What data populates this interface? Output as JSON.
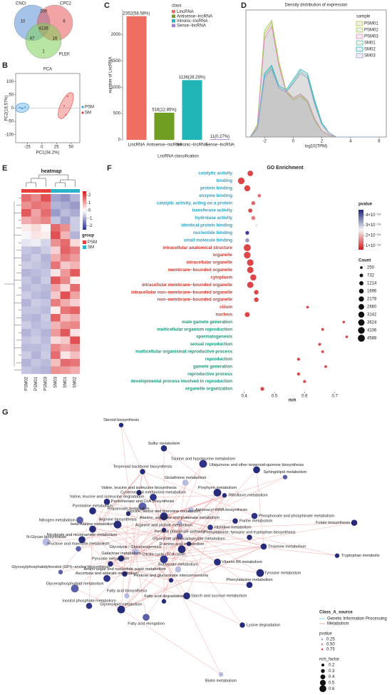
{
  "panels": [
    "B",
    "C",
    "D",
    "E",
    "F",
    "G"
  ],
  "venn": {
    "sets": [
      "CNCI",
      "CPC2",
      "PLEK"
    ],
    "regions": [
      10,
      209,
      6,
      4136,
      47,
      16,
      1
    ]
  },
  "chart_data": [
    {
      "type": "scatter",
      "title": "PCA",
      "xlabel": "PC1(34.2%)",
      "ylabel": "PC2(18.57%)",
      "xlim": [
        -45,
        65
      ],
      "ylim": [
        -130,
        130
      ],
      "xticks": [
        -25,
        0,
        25,
        50
      ],
      "yticks": [
        100,
        50,
        0,
        -50,
        -100
      ],
      "series": [
        {
          "name": "PSM",
          "color": "#3d9be0",
          "x": [
            -38,
            -33,
            -29,
            -35
          ],
          "values": [
            3,
            -1,
            4,
            0
          ]
        },
        {
          "name": "SM",
          "color": "#e8403a",
          "x": [
            44,
            38,
            41
          ],
          "values": [
            45,
            8,
            -25
          ]
        }
      ]
    },
    {
      "type": "bar",
      "ylabel": "number of LncRNA",
      "xlabel": "LncRNA classification",
      "legend_title": "class",
      "categories": [
        "LincRNA",
        "Antisense−lncRNA",
        "Intronic−lncRNA",
        "Sense−lncRNA"
      ],
      "values": [
        2352,
        516,
        1136,
        11
      ],
      "value_labels": [
        "2352(58.58%)",
        "516(12.85%)",
        "1136(28.29%)",
        "11(0.27%)"
      ],
      "colors": [
        "#ee6f61",
        "#6f9e22",
        "#22b5b8",
        "#a87bd6"
      ],
      "ylim": [
        0,
        2470
      ],
      "yticks": [
        0,
        500,
        1000,
        1500,
        2000
      ]
    },
    {
      "type": "line",
      "title": "Density distribution of expression",
      "xlabel": "log10(TPM)",
      "legend_title": "sample",
      "xlim": [
        -3.3,
        6.5
      ],
      "ylim": [
        0,
        0.62
      ],
      "xticks": [
        -2,
        0,
        2,
        4,
        6
      ],
      "x": [
        -3,
        -2.5,
        -2,
        -1.5,
        -1,
        -0.5,
        0,
        0.5,
        1,
        1.5,
        2,
        2.5,
        3,
        4,
        5,
        6
      ],
      "series": [
        {
          "name": "PSM01",
          "color": "#c9c43a",
          "values": [
            0,
            0.06,
            0.5,
            0.56,
            0.36,
            0.22,
            0.18,
            0.2,
            0.17,
            0.08,
            0.03,
            0.01,
            0,
            0,
            0,
            0
          ]
        },
        {
          "name": "PSM02",
          "color": "#9fd356",
          "values": [
            0,
            0.06,
            0.52,
            0.57,
            0.37,
            0.23,
            0.19,
            0.21,
            0.17,
            0.08,
            0.03,
            0.01,
            0,
            0,
            0,
            0
          ]
        },
        {
          "name": "PSM03",
          "color": "#e78ac3",
          "values": [
            0,
            0.05,
            0.48,
            0.54,
            0.35,
            0.22,
            0.19,
            0.21,
            0.18,
            0.09,
            0.03,
            0.01,
            0,
            0,
            0,
            0
          ]
        },
        {
          "name": "SM01",
          "color": "#66c2a5",
          "values": [
            0,
            0.04,
            0.3,
            0.34,
            0.24,
            0.22,
            0.27,
            0.32,
            0.3,
            0.17,
            0.07,
            0.02,
            0,
            0,
            0,
            0
          ]
        },
        {
          "name": "SM02",
          "color": "#1fb5c8",
          "values": [
            0,
            0.04,
            0.31,
            0.35,
            0.25,
            0.23,
            0.28,
            0.33,
            0.31,
            0.18,
            0.07,
            0.02,
            0,
            0,
            0,
            0
          ]
        },
        {
          "name": "SM03",
          "color": "#8da0cb",
          "values": [
            0,
            0.04,
            0.29,
            0.33,
            0.24,
            0.22,
            0.26,
            0.31,
            0.29,
            0.16,
            0.06,
            0.02,
            0,
            0,
            0,
            0
          ]
        }
      ]
    },
    {
      "type": "heatmap",
      "title": "heatmap",
      "columns": [
        "PSM02",
        "PSM01",
        "PSM03",
        "SM03",
        "SM01",
        "SM02"
      ],
      "clim": [
        -2.5,
        2.5
      ],
      "cticks": [
        2,
        1,
        0,
        -1,
        -2
      ],
      "legend_title": "group",
      "groups": [
        {
          "name": "PSM",
          "color": "#e8403a"
        },
        {
          "name": "SM",
          "color": "#2ab3c8"
        }
      ],
      "column_groups": [
        0,
        0,
        0,
        1,
        1,
        1
      ],
      "values": [
        [
          1.6,
          1.3,
          1.9,
          -1.1,
          -1.3,
          -0.9
        ],
        [
          1.2,
          1.5,
          1.4,
          -0.9,
          -1.0,
          -1.2
        ],
        [
          1.8,
          1.0,
          1.6,
          -1.2,
          -0.8,
          -1.0
        ],
        [
          0.9,
          1.1,
          1.3,
          -0.7,
          -1.1,
          -0.6
        ],
        [
          0.2,
          0.4,
          0.1,
          1.6,
          1.2,
          -0.6
        ],
        [
          -0.1,
          0.3,
          0.2,
          1.9,
          0.8,
          -0.9
        ],
        [
          -0.3,
          -0.2,
          -0.5,
          1.2,
          1.6,
          0.4
        ],
        [
          -0.7,
          -0.8,
          -0.6,
          0.5,
          1.7,
          1.4
        ],
        [
          -0.8,
          -0.6,
          -0.9,
          0.9,
          1.4,
          1.1
        ],
        [
          -0.6,
          -0.7,
          -0.8,
          1.5,
          0.6,
          0.8
        ],
        [
          -0.9,
          -0.8,
          -0.7,
          0.3,
          1.1,
          1.8
        ],
        [
          -0.7,
          -0.9,
          -0.6,
          1.8,
          1.3,
          0.2
        ],
        [
          -0.8,
          -0.7,
          -0.8,
          1.0,
          0.4,
          1.6
        ],
        [
          -0.6,
          -0.8,
          -0.9,
          0.6,
          1.9,
          1.0
        ],
        [
          -0.9,
          -0.6,
          -0.7,
          1.4,
          0.9,
          0.5
        ],
        [
          -0.7,
          -0.7,
          -0.8,
          0.2,
          1.5,
          1.7
        ],
        [
          -0.8,
          -0.9,
          -0.6,
          1.7,
          0.7,
          0.9
        ],
        [
          -0.6,
          -0.8,
          -0.7,
          0.8,
          1.2,
          1.3
        ],
        [
          -0.9,
          -0.7,
          -0.9,
          1.1,
          1.8,
          0.3
        ],
        [
          -0.7,
          -0.6,
          -0.8,
          0.4,
          0.6,
          1.9
        ],
        [
          -0.8,
          -0.8,
          -0.7,
          1.3,
          1.0,
          1.2
        ],
        [
          -0.6,
          -0.9,
          -0.6,
          1.6,
          0.3,
          0.7
        ],
        [
          -0.9,
          -0.7,
          -0.8,
          0.7,
          1.6,
          1.5
        ],
        [
          -0.7,
          -0.8,
          -0.9,
          1.2,
          1.1,
          0.9
        ]
      ]
    },
    {
      "type": "dot",
      "title": "GO Enrichment",
      "xlabel": "rich",
      "xlim": [
        0.37,
        0.76
      ],
      "xticks": [
        0.4,
        0.5,
        0.6,
        0.7
      ],
      "terms": [
        "catalytic activity",
        "binding",
        "protein binding",
        "enzyme binding",
        "catalytic activity, acting on a protein",
        "transferase activity",
        "hydrolase activity",
        "identical protein binding",
        "nucleotide binding",
        "small molecule binding",
        "intracellular anatomical structure",
        "organelle",
        "intracellular organelle",
        "membrane−bounded organelle",
        "cytoplasm",
        "intracellular membrane−bounded organelle",
        "intracellular non−membrane−bounded organelle",
        "non−membrane−bounded organelle",
        "cilium",
        "nucleus",
        "male gamete generation",
        "multicellular organism reproduction",
        "spermatogenesis",
        "sexual reproduction",
        "multicellular organismal reproductive process",
        "reproduction",
        "gamete generation",
        "reproductive process",
        "developmental process involved in reproduction",
        "organelle organization"
      ],
      "term_colors": [
        "#2aa3c8",
        "#2aa3c8",
        "#2aa3c8",
        "#2aa3c8",
        "#2aa3c8",
        "#2aa3c8",
        "#2aa3c8",
        "#2aa3c8",
        "#2aa3c8",
        "#2aa3c8",
        "#d9342b",
        "#d9342b",
        "#d9342b",
        "#d9342b",
        "#d9342b",
        "#d9342b",
        "#d9342b",
        "#d9342b",
        "#d9342b",
        "#d9342b",
        "#18977a",
        "#18977a",
        "#18977a",
        "#18977a",
        "#18977a",
        "#18977a",
        "#18977a",
        "#18977a",
        "#18977a",
        "#18977a"
      ],
      "rich": [
        0.42,
        0.39,
        0.41,
        0.45,
        0.43,
        0.42,
        0.43,
        0.44,
        0.41,
        0.41,
        0.41,
        0.41,
        0.42,
        0.42,
        0.43,
        0.42,
        0.44,
        0.44,
        0.61,
        0.41,
        0.73,
        0.66,
        0.74,
        0.65,
        0.66,
        0.58,
        0.67,
        0.58,
        0.6,
        0.46
      ],
      "pvalue": [
        1e-14,
        1e-14,
        1e-14,
        1.4e-14,
        1.3e-14,
        1e-14,
        1.5e-14,
        2.6e-14,
        4.2e-14,
        3.4e-14,
        1e-14,
        1e-14,
        1e-14,
        1e-14,
        1e-14,
        1e-14,
        1e-14,
        1e-14,
        1e-14,
        1e-14,
        1e-14,
        1e-14,
        1e-14,
        1e-14,
        1e-14,
        1e-14,
        1e-14,
        1e-14,
        1e-14,
        1e-14
      ],
      "count": [
        2600,
        4000,
        3200,
        700,
        1000,
        1100,
        1100,
        600,
        900,
        1000,
        4588,
        4100,
        4000,
        3700,
        3300,
        3500,
        1500,
        1500,
        250,
        2000,
        250,
        300,
        250,
        350,
        300,
        450,
        300,
        450,
        350,
        900
      ],
      "pvalue_title": "pvalue",
      "clim": [
        6e-15,
        4.5e-14
      ],
      "pvalue_ticks": [
        {
          "value": 4e-14,
          "label": "4×10⁻¹⁴"
        },
        {
          "value": 3e-14,
          "label": "3×10⁻¹⁴"
        },
        {
          "value": 2e-14,
          "label": "2×10⁻¹⁴"
        },
        {
          "value": 1e-14,
          "label": "1×10⁻¹⁴"
        }
      ],
      "count_title": "Count",
      "count_ticks": [
        250,
        732,
        1214,
        1696,
        2178,
        2660,
        3142,
        3624,
        4106,
        4588
      ]
    }
  ],
  "network": {
    "nodes": [
      "Steroid biosynthesis",
      "Sulfur metabolism",
      "Taurine and hypotaurine metabolism",
      "Terpenoid backbone biosynthesis",
      "Ubiquinone and other terpenoid-quinone biosynthesis",
      "Sphingolipid metabolism",
      "Glutathione metabolism",
      "Porphyrin metabolism",
      "Valine, leucine and isoleucine biosynthesis",
      "Cysteine and methionine metabolism",
      "Riboflavin metabolism",
      "Valine, leucine and isoleucine degradation",
      "Pantothenate and CoA biosynthesis",
      "Aminoacyl-tRNA biosynthesis",
      "Pyrimidine metabolism",
      "Propanoate metabolism",
      "Phosphonate and phosphinate metabolism",
      "Glycine, serine and threonine metabolism",
      "Purine metabolism",
      "Nitrogen metabolism",
      "Alanine, aspartate and glutamate metabolism",
      "Folate biosynthesis",
      "Arginine biosynthesis",
      "Histidine metabolism",
      "beta-Alanine metabolism",
      "Arginine and proline metabolism",
      "Pentose phosphate pathway",
      "N-Glycan biosynthesis",
      "Phenylalanine, tyrosine and tryptophan biosynthesis",
      "Nicotinate and nicotinamide metabolism",
      "Glyoxylate and dicarboxylate metabolism",
      "Thiamine metabolism",
      "D-amino acid metabolism",
      "Fructose and mannose metabolism",
      "Glycolysis / Gluconeogenesis",
      "Tryptophan metabolis",
      "Galactose metabolism",
      "Citrate cycle (TCA cycle)",
      "Pyruvate metabolism",
      "Vitamin B6 metabolism",
      "Glycosylphosphatidylinositol (GPI)−anchor biosynthesis",
      "Butanoate metabolism",
      "Tyrosine metabolism",
      "Amino sugar and nucleotide sugar metabolism",
      "Ascorbate and aldarate metabolism",
      "Pentose and glucuronate interconversions",
      "Phenylalanine metabolism",
      "Glycerophospholipid metabolism",
      "Fatty acid biosynthesis",
      "Starch and sucrose metabolism",
      "Fatty acid degradation",
      "Inositol phosphate metabolism",
      "Glycerolipid metabolism",
      "Lysine degradation",
      "Fatty acid elongation",
      "Biotin metabolism"
    ],
    "legend": {
      "class_title": "Class_A_source",
      "classes": [
        "Genetic Information Processing",
        "Metabolism"
      ],
      "pvalue_title": "pvalue",
      "pvalue_labels": [
        "0.25",
        "0.50",
        "0.75"
      ],
      "rich_title": "rich_factor",
      "rich_labels": [
        "0.2",
        "0.3",
        "0.4",
        "0.5",
        "0.6"
      ]
    }
  }
}
